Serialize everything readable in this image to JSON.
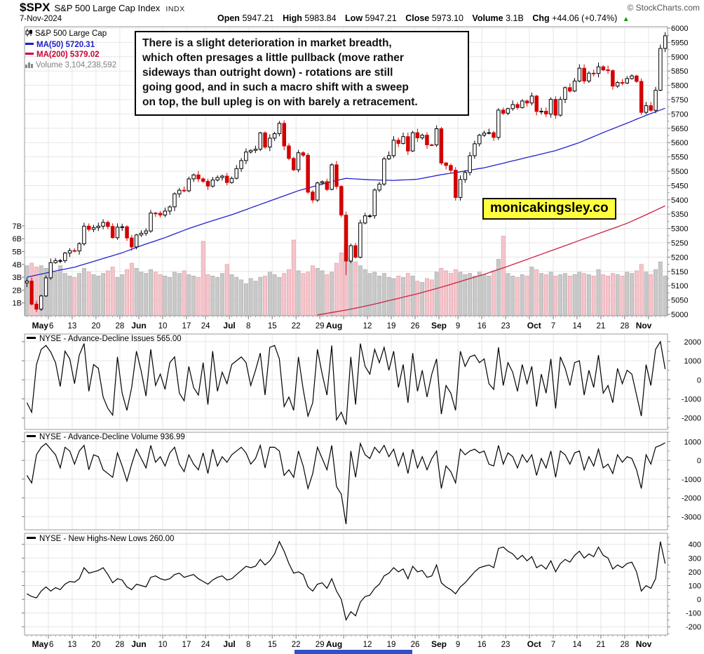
{
  "header": {
    "symbol": "$SPX",
    "name": "S&P 500 Large Cap Index",
    "exchange": "INDX",
    "date": "7-Nov-2024",
    "open_label": "Open",
    "open": "5947.21",
    "high_label": "High",
    "high": "5983.84",
    "low_label": "Low",
    "low": "5947.21",
    "close_label": "Close",
    "close": "5973.10",
    "volume_label": "Volume",
    "volume": "3.1B",
    "chg_label": "Chg",
    "chg": "+44.06 (+0.74%)",
    "credit": "© StockCharts.com"
  },
  "legend": {
    "series": "S&P 500 Large Cap",
    "ma50": "MA(50) 5720.31",
    "ma200": "MA(200) 5379.02",
    "volume": "Volume 3,104,238,592"
  },
  "annotation": {
    "text": "There is a slight deterioration in market breadth,\nwhich often presages a little pullback (move rather\nsideways than outright down) - rotations are still\ngoing good, and in such a macro shift with a sweep\non top, the bull upleg is on with barely a retracement."
  },
  "watermark": "monicakingsley.co",
  "colors": {
    "up": "#000000",
    "up_fill": "#ffffff",
    "down": "#d40000",
    "vol_up": "#c9c9c9",
    "vol_up_stroke": "#a6a6a6",
    "vol_down": "#f5c5cb",
    "vol_down_stroke": "#de97a0",
    "ma50": "#2222cc",
    "ma200": "#cc2244",
    "grid": "#e6e6e6",
    "frame": "#999999",
    "line": "#000000",
    "watermark_bg": "#ffff3d",
    "chg_arrow": "#0a9b0a"
  },
  "chart_data": [
    {
      "type": "candlestick",
      "title": "S&P 500 Large Cap Index",
      "date_range": "29-Apr-2024 to 7-Nov-2024",
      "y_axis": {
        "min": 5000,
        "max": 6000,
        "step": 50
      },
      "volume_axis": {
        "unit": "B",
        "labels": [
          1,
          2,
          3,
          4,
          5,
          6,
          7
        ]
      },
      "x_ticks": [
        {
          "i": 5,
          "m": "May",
          "d": "6"
        },
        {
          "i": 10,
          "d": "13"
        },
        {
          "i": 15,
          "d": "20"
        },
        {
          "i": 20,
          "d": "28"
        },
        {
          "i": 24,
          "m": "Jun"
        },
        {
          "i": 29,
          "d": "10"
        },
        {
          "i": 34,
          "d": "17"
        },
        {
          "i": 38,
          "d": "24"
        },
        {
          "i": 43,
          "m": "Jul"
        },
        {
          "i": 47,
          "d": "8"
        },
        {
          "i": 52,
          "d": "15"
        },
        {
          "i": 57,
          "d": "22"
        },
        {
          "i": 62,
          "d": "29"
        },
        {
          "i": 65,
          "m": "Aug"
        },
        {
          "i": 72,
          "d": "12"
        },
        {
          "i": 77,
          "d": "19"
        },
        {
          "i": 82,
          "d": "26"
        },
        {
          "i": 87,
          "m": "Sep"
        },
        {
          "i": 91,
          "d": "9"
        },
        {
          "i": 96,
          "d": "16"
        },
        {
          "i": 101,
          "d": "23"
        },
        {
          "i": 107,
          "m": "Oct"
        },
        {
          "i": 111,
          "d": "7"
        },
        {
          "i": 116,
          "d": "14"
        },
        {
          "i": 121,
          "d": "21"
        },
        {
          "i": 126,
          "d": "28"
        },
        {
          "i": 130,
          "m": "Nov"
        }
      ],
      "grid_i": [
        5,
        10,
        15,
        20,
        24,
        29,
        34,
        38,
        43,
        47,
        52,
        57,
        62,
        67,
        72,
        77,
        82,
        87,
        91,
        96,
        101,
        106,
        111,
        116,
        121,
        126,
        131
      ],
      "open_first": 5110,
      "wick_low_extra": {
        "67": 45
      },
      "closes": [
        5116.2,
        5035.7,
        5018.4,
        5064.2,
        5127.8,
        5180.7,
        5187.7,
        5187.7,
        5214.1,
        5222.7,
        5221.4,
        5246.7,
        5308.2,
        5297.1,
        5303.3,
        5308.1,
        5321.4,
        5307.0,
        5267.8,
        5304.7,
        5306.0,
        5267.0,
        5235.5,
        5277.5,
        5283.4,
        5291.3,
        5354.0,
        5353.0,
        5347.0,
        5360.8,
        5375.3,
        5421.0,
        5433.7,
        5431.6,
        5473.2,
        5487.0,
        5473.2,
        5464.6,
        5447.9,
        5469.3,
        5477.9,
        5482.9,
        5460.5,
        5475.1,
        5509.0,
        5537.0,
        5567.2,
        5572.9,
        5577.0,
        5633.9,
        5584.5,
        5615.4,
        5631.2,
        5667.2,
        5588.3,
        5544.6,
        5505.0,
        5564.4,
        5555.7,
        5427.1,
        5399.2,
        5459.1,
        5463.5,
        5436.4,
        5522.3,
        5446.7,
        5346.6,
        5186.3,
        5240.0,
        5199.5,
        5319.3,
        5344.2,
        5344.4,
        5434.4,
        5455.2,
        5543.2,
        5554.3,
        5608.3,
        5597.1,
        5620.9,
        5570.6,
        5634.6,
        5616.8,
        5625.8,
        5592.2,
        5592.0,
        5648.4,
        5528.9,
        5520.1,
        5503.4,
        5408.4,
        5471.1,
        5495.5,
        5554.1,
        5595.8,
        5626.0,
        5633.1,
        5634.6,
        5618.3,
        5713.6,
        5702.6,
        5718.6,
        5732.9,
        5722.3,
        5745.4,
        5738.2,
        5762.5,
        5708.8,
        5709.5,
        5699.9,
        5751.1,
        5695.9,
        5751.1,
        5792.0,
        5780.1,
        5815.0,
        5859.9,
        5815.3,
        5842.5,
        5841.5,
        5864.7,
        5854.0,
        5851.2,
        5797.4,
        5809.9,
        5808.1,
        5823.5,
        5832.9,
        5813.7,
        5705.5,
        5728.8,
        5712.7,
        5782.8,
        5929.0,
        5973.1
      ],
      "volumes_b": [
        3.9,
        4.1,
        3.8,
        3.9,
        3.7,
        3.6,
        3.4,
        3.9,
        3.3,
        3.1,
        3.0,
        3.3,
        3.7,
        3.4,
        3.2,
        3.1,
        3.3,
        3.5,
        3.8,
        3.0,
        3.2,
        3.6,
        4.1,
        3.7,
        3.4,
        3.3,
        3.6,
        3.4,
        3.2,
        3.1,
        3.0,
        3.4,
        3.3,
        3.5,
        3.2,
        3.1,
        3.0,
        5.8,
        3.2,
        3.1,
        3.0,
        3.3,
        4.0,
        3.2,
        3.0,
        2.8,
        2.5,
        2.9,
        2.7,
        3.0,
        3.1,
        3.4,
        3.2,
        3.0,
        3.3,
        3.6,
        5.9,
        3.5,
        3.3,
        3.4,
        3.9,
        3.7,
        3.5,
        3.2,
        3.4,
        4.1,
        4.9,
        5.5,
        4.6,
        4.2,
        3.9,
        3.6,
        3.3,
        3.4,
        3.1,
        3.3,
        3.0,
        2.9,
        3.1,
        3.0,
        3.3,
        3.1,
        2.7,
        2.6,
        2.9,
        2.8,
        3.4,
        3.7,
        3.5,
        3.3,
        3.6,
        3.4,
        3.2,
        3.3,
        3.1,
        3.4,
        3.2,
        3.1,
        3.5,
        4.4,
        6.2,
        3.3,
        3.1,
        3.0,
        3.2,
        3.1,
        3.8,
        3.6,
        3.3,
        3.2,
        3.4,
        3.1,
        3.2,
        3.3,
        3.1,
        3.2,
        3.4,
        3.3,
        3.2,
        3.1,
        3.6,
        3.2,
        3.1,
        3.3,
        3.2,
        3.1,
        3.4,
        3.3,
        3.5,
        4.0,
        3.4,
        3.2,
        3.6,
        4.2,
        3.1
      ],
      "ma50": {
        "label": "MA(50) 5720.31",
        "color": "#2222cc",
        "anchors": [
          [
            0,
            5130
          ],
          [
            5,
            5148
          ],
          [
            10,
            5165
          ],
          [
            15,
            5190
          ],
          [
            20,
            5215
          ],
          [
            24,
            5240
          ],
          [
            29,
            5268
          ],
          [
            34,
            5300
          ],
          [
            38,
            5322
          ],
          [
            43,
            5348
          ],
          [
            47,
            5372
          ],
          [
            52,
            5402
          ],
          [
            57,
            5432
          ],
          [
            62,
            5455
          ],
          [
            65,
            5468
          ],
          [
            67,
            5475
          ],
          [
            72,
            5470
          ],
          [
            77,
            5468
          ],
          [
            82,
            5472
          ],
          [
            87,
            5488
          ],
          [
            91,
            5498
          ],
          [
            96,
            5512
          ],
          [
            101,
            5532
          ],
          [
            106,
            5552
          ],
          [
            111,
            5572
          ],
          [
            116,
            5600
          ],
          [
            121,
            5635
          ],
          [
            126,
            5668
          ],
          [
            130,
            5695
          ],
          [
            134,
            5720
          ]
        ]
      },
      "ma200": {
        "label": "MA(200) 5379.02",
        "color": "#cc2244",
        "anchors": [
          [
            61,
            4998
          ],
          [
            67,
            5015
          ],
          [
            72,
            5032
          ],
          [
            77,
            5052
          ],
          [
            82,
            5072
          ],
          [
            87,
            5095
          ],
          [
            91,
            5115
          ],
          [
            96,
            5140
          ],
          [
            101,
            5168
          ],
          [
            106,
            5198
          ],
          [
            111,
            5228
          ],
          [
            116,
            5258
          ],
          [
            121,
            5288
          ],
          [
            126,
            5318
          ],
          [
            130,
            5348
          ],
          [
            134,
            5379
          ]
        ]
      }
    },
    {
      "type": "line",
      "legend": "NYSE - Advance-Decline Issues 565.00",
      "last_value": 565.0,
      "y_ticks": [
        2000,
        1000,
        0,
        -1000,
        -2000
      ],
      "ylim": [
        -2600,
        2400
      ],
      "minor_step": 500,
      "values": [
        -1200,
        -1700,
        800,
        1600,
        1800,
        1450,
        900,
        -350,
        1500,
        1100,
        -200,
        1300,
        1900,
        -600,
        800,
        600,
        -900,
        -1500,
        -1850,
        1200,
        -700,
        -1600,
        -400,
        1500,
        450,
        -850,
        1600,
        -300,
        300,
        -500,
        900,
        1200,
        -700,
        -1100,
        700,
        -400,
        -800,
        900,
        -1300,
        1500,
        -600,
        400,
        -200,
        800,
        1000,
        1200,
        900,
        -300,
        500,
        1400,
        -800,
        1700,
        1800,
        1100,
        -1400,
        -900,
        -1600,
        1200,
        -500,
        -1900,
        -1200,
        1600,
        300,
        -800,
        1800,
        -2100,
        -1700,
        -2350,
        1200,
        -1300,
        1900,
        700,
        300,
        1600,
        900,
        1700,
        500,
        1500,
        -400,
        800,
        -1200,
        1400,
        -600,
        500,
        -900,
        300,
        1100,
        -1800,
        -300,
        -700,
        -1600,
        1500,
        700,
        1200,
        1300,
        900,
        1100,
        -200,
        -500,
        1700,
        -300,
        900,
        400,
        -600,
        800,
        -200,
        700,
        -1400,
        300,
        -700,
        1100,
        -1500,
        1200,
        600,
        -300,
        900,
        1000,
        -800,
        500,
        -400,
        1300,
        -700,
        -300,
        -1200,
        600,
        -200,
        500,
        300,
        -800,
        -1900,
        800,
        -300,
        1600,
        2000,
        565
      ]
    },
    {
      "type": "line",
      "legend": "NYSE - Advance-Decline Volume 936.99",
      "last_value": 936.99,
      "y_ticks": [
        1000,
        0,
        -1000,
        -2000,
        -3000
      ],
      "ylim": [
        -3700,
        1500
      ],
      "minor_step": 500,
      "values": [
        -800,
        -1200,
        300,
        700,
        900,
        600,
        300,
        -400,
        700,
        500,
        -200,
        500,
        800,
        -500,
        300,
        200,
        -500,
        -700,
        -900,
        400,
        -300,
        -1100,
        -200,
        600,
        100,
        -400,
        800,
        -100,
        200,
        -300,
        400,
        700,
        -200,
        -600,
        300,
        -200,
        -500,
        400,
        -700,
        600,
        -300,
        200,
        -100,
        300,
        500,
        700,
        400,
        -200,
        100,
        800,
        -400,
        700,
        700,
        500,
        -800,
        -500,
        -900,
        500,
        -300,
        -1500,
        -700,
        700,
        100,
        -500,
        800,
        -1400,
        -1800,
        -3400,
        500,
        -900,
        900,
        300,
        100,
        700,
        400,
        800,
        200,
        600,
        -300,
        400,
        -700,
        600,
        -400,
        200,
        -500,
        100,
        500,
        -1500,
        -300,
        -600,
        -1200,
        600,
        300,
        500,
        600,
        400,
        500,
        -200,
        -300,
        800,
        -200,
        400,
        200,
        -400,
        300,
        -100,
        300,
        -800,
        100,
        -400,
        500,
        -900,
        500,
        300,
        -200,
        400,
        500,
        -500,
        200,
        -300,
        600,
        -400,
        -200,
        -700,
        300,
        -100,
        200,
        100,
        -500,
        -1500,
        300,
        -200,
        700,
        800,
        937
      ]
    },
    {
      "type": "line",
      "legend": "NYSE - New Highs-New Lows 260.00",
      "last_value": 260.0,
      "y_ticks": [
        400,
        300,
        200,
        100,
        0,
        -100,
        -200
      ],
      "ylim": [
        -260,
        480
      ],
      "minor_step": 50,
      "values": [
        40,
        20,
        10,
        60,
        90,
        60,
        85,
        70,
        110,
        130,
        125,
        150,
        230,
        190,
        200,
        210,
        230,
        180,
        120,
        150,
        140,
        90,
        70,
        110,
        100,
        90,
        160,
        170,
        150,
        140,
        150,
        180,
        190,
        160,
        170,
        180,
        150,
        130,
        110,
        140,
        160,
        170,
        140,
        150,
        180,
        210,
        240,
        230,
        240,
        290,
        250,
        280,
        330,
        420,
        350,
        260,
        190,
        200,
        180,
        90,
        60,
        110,
        120,
        80,
        150,
        60,
        0,
        -150,
        -90,
        -120,
        -20,
        20,
        30,
        80,
        110,
        170,
        190,
        230,
        200,
        220,
        150,
        240,
        200,
        210,
        160,
        170,
        250,
        120,
        90,
        70,
        40,
        90,
        120,
        160,
        200,
        230,
        240,
        250,
        230,
        370,
        380,
        350,
        330,
        290,
        320,
        280,
        310,
        230,
        250,
        220,
        280,
        200,
        260,
        290,
        270,
        320,
        350,
        300,
        330,
        310,
        380,
        320,
        300,
        220,
        250,
        230,
        260,
        270,
        200,
        60,
        100,
        80,
        150,
        420,
        260
      ]
    }
  ]
}
